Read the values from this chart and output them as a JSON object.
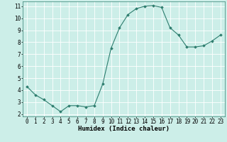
{
  "x": [
    0,
    1,
    2,
    3,
    4,
    5,
    6,
    7,
    8,
    9,
    10,
    11,
    12,
    13,
    14,
    15,
    16,
    17,
    18,
    19,
    20,
    21,
    22,
    23
  ],
  "y": [
    4.3,
    3.6,
    3.2,
    2.7,
    2.2,
    2.7,
    2.7,
    2.6,
    2.7,
    4.5,
    7.5,
    9.2,
    10.3,
    10.8,
    11.0,
    11.05,
    10.9,
    9.2,
    8.6,
    7.6,
    7.6,
    7.7,
    8.1,
    8.6
  ],
  "xlabel": "Humidex (Indice chaleur)",
  "ylim": [
    1.8,
    11.4
  ],
  "xlim": [
    -0.5,
    23.5
  ],
  "yticks": [
    2,
    3,
    4,
    5,
    6,
    7,
    8,
    9,
    10,
    11
  ],
  "xticks": [
    0,
    1,
    2,
    3,
    4,
    5,
    6,
    7,
    8,
    9,
    10,
    11,
    12,
    13,
    14,
    15,
    16,
    17,
    18,
    19,
    20,
    21,
    22,
    23
  ],
  "line_color": "#2d7d6e",
  "marker_color": "#2d7d6e",
  "bg_color": "#cceee8",
  "grid_color": "#ffffff",
  "xlabel_fontsize": 6.5,
  "tick_fontsize": 5.5
}
